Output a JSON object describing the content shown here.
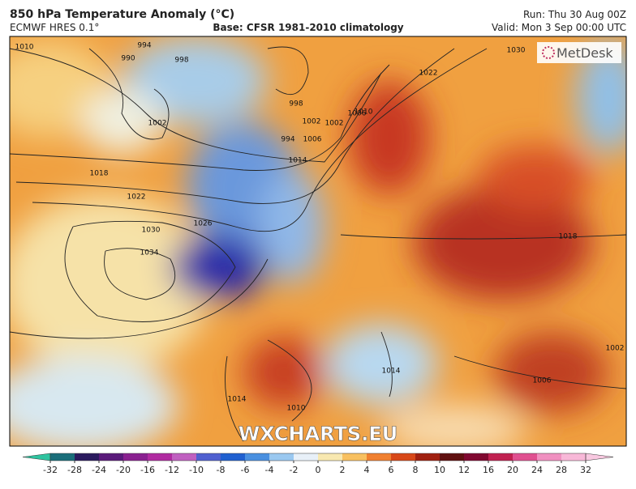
{
  "header": {
    "title": "850 hPa Temperature Anomaly (°C)",
    "model": "ECMWF HRES 0.1°",
    "base": "Base: CFSR 1981-2010 climatology",
    "run": "Run: Thu 30 Aug 00Z",
    "valid": "Valid: Mon 3 Sep 00:00 UTC"
  },
  "logo": "MetDesk",
  "watermark": "WXCHARTS.EU",
  "isobar_labels": [
    "1010",
    "990",
    "994",
    "1002",
    "998",
    "1002",
    "1006",
    "994",
    "998",
    "1002",
    "1010",
    "1006",
    "1014",
    "1030",
    "1022",
    "1018",
    "1022",
    "1026",
    "1030",
    "1034",
    "1018",
    "1006",
    "1014",
    "1014",
    "1010",
    "1002"
  ],
  "colorbar": {
    "ticks": [
      -32,
      -28,
      -24,
      -20,
      -16,
      -12,
      -10,
      -8,
      -6,
      -4,
      -2,
      0,
      2,
      4,
      6,
      8,
      10,
      12,
      16,
      20,
      24,
      28,
      32
    ],
    "colors": [
      "#2fc4a0",
      "#1a6e7a",
      "#2a1a5e",
      "#5a1a7a",
      "#8a2090",
      "#b02aa0",
      "#c060c0",
      "#5060d0",
      "#2060d0",
      "#4a90e0",
      "#9ac8f0",
      "#e8f0f8",
      "#f8e8b0",
      "#f8c060",
      "#f08030",
      "#d84818",
      "#a02010",
      "#601010",
      "#800830",
      "#c02050",
      "#e05090",
      "#f090c0",
      "#f8b8d8",
      "#f8c8e0"
    ]
  }
}
